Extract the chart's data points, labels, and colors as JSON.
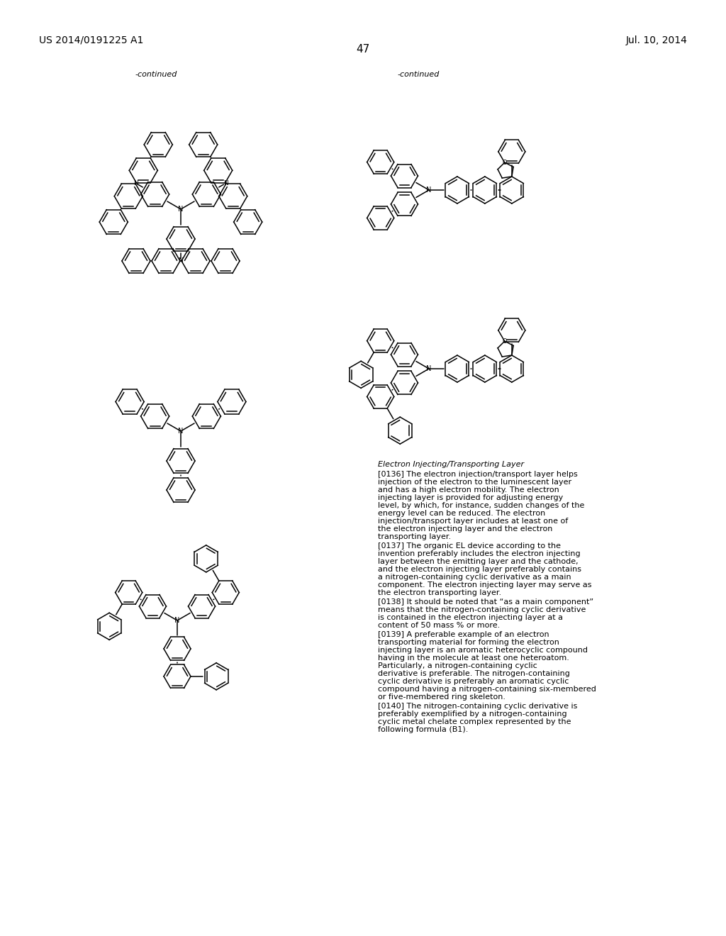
{
  "page_number": "47",
  "patent_number": "US 2014/0191225 A1",
  "patent_date": "Jul. 10, 2014",
  "bg": "#ffffff",
  "lw": 1.1,
  "r_ring": 20,
  "para_title": "Electron Injecting/Transporting Layer",
  "p136": "[0136]    The electron injection/transport layer helps injection of the electron to the luminescent layer and has a high electron mobility. The electron injecting layer is provided for adjusting energy level, by which, for instance, sudden changes of the energy level can be reduced. The electron injection/transport layer includes at least one of the electron injecting layer and the electron transporting layer.",
  "p137": "[0137]    The organic EL device according to the invention preferably includes the electron injecting layer between the emitting layer and the cathode, and the electron injecting layer preferably contains a nitrogen-containing cyclic derivative as a main component. The electron injecting layer may serve as the electron transporting layer.",
  "p138": "[0138]    It should be noted that “as a main component” means that the nitrogen-containing cyclic derivative is contained in the electron injecting layer at a content of 50 mass % or more.",
  "p139": "[0139]    A preferable example of an electron transporting material for forming the electron injecting layer is an aromatic heterocyclic compound having in the molecule at least one heteroatom. Particularly, a nitrogen-containing cyclic derivative is preferable. The nitrogen-containing cyclic derivative is preferably an aromatic cyclic compound having a nitrogen-containing six-membered or five-membered ring skeleton.",
  "p140": "[0140]    The nitrogen-containing cyclic derivative is preferably exemplified by a nitrogen-containing cyclic metal chelate complex represented by the following formula (B1)."
}
